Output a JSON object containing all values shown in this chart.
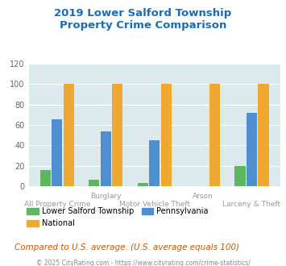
{
  "title": "2019 Lower Salford Township\nProperty Crime Comparison",
  "title_color": "#1a6db5",
  "categories": [
    "All Property Crime",
    "Burglary",
    "Motor Vehicle Theft",
    "Arson",
    "Larceny & Theft"
  ],
  "local_values": [
    16,
    6,
    3,
    0,
    20
  ],
  "state_values": [
    66,
    54,
    45,
    0,
    72
  ],
  "national_values": [
    100,
    100,
    100,
    100,
    100
  ],
  "local_color": "#5cb85c",
  "state_color": "#4d8fd1",
  "national_color": "#f0a830",
  "ylim": [
    0,
    120
  ],
  "yticks": [
    0,
    20,
    40,
    60,
    80,
    100,
    120
  ],
  "plot_bg": "#dce9ed",
  "fig_bg": "#ffffff",
  "legend_labels": [
    "Lower Salford Township",
    "National",
    "Pennsylvania"
  ],
  "xlabel_offset": [
    [
      "All Property Crime",
      0
    ],
    [
      "Burglary",
      0
    ],
    [
      "Motor Vehicle Theft",
      0
    ],
    [
      "Arson",
      0
    ],
    [
      "Larceny & Theft",
      0
    ]
  ],
  "footer_text": "Compared to U.S. average. (U.S. average equals 100)",
  "footer_color": "#cc5500",
  "copyright_text": "© 2025 CityRating.com - https://www.cityrating.com/crime-statistics/",
  "copyright_color": "#888888"
}
